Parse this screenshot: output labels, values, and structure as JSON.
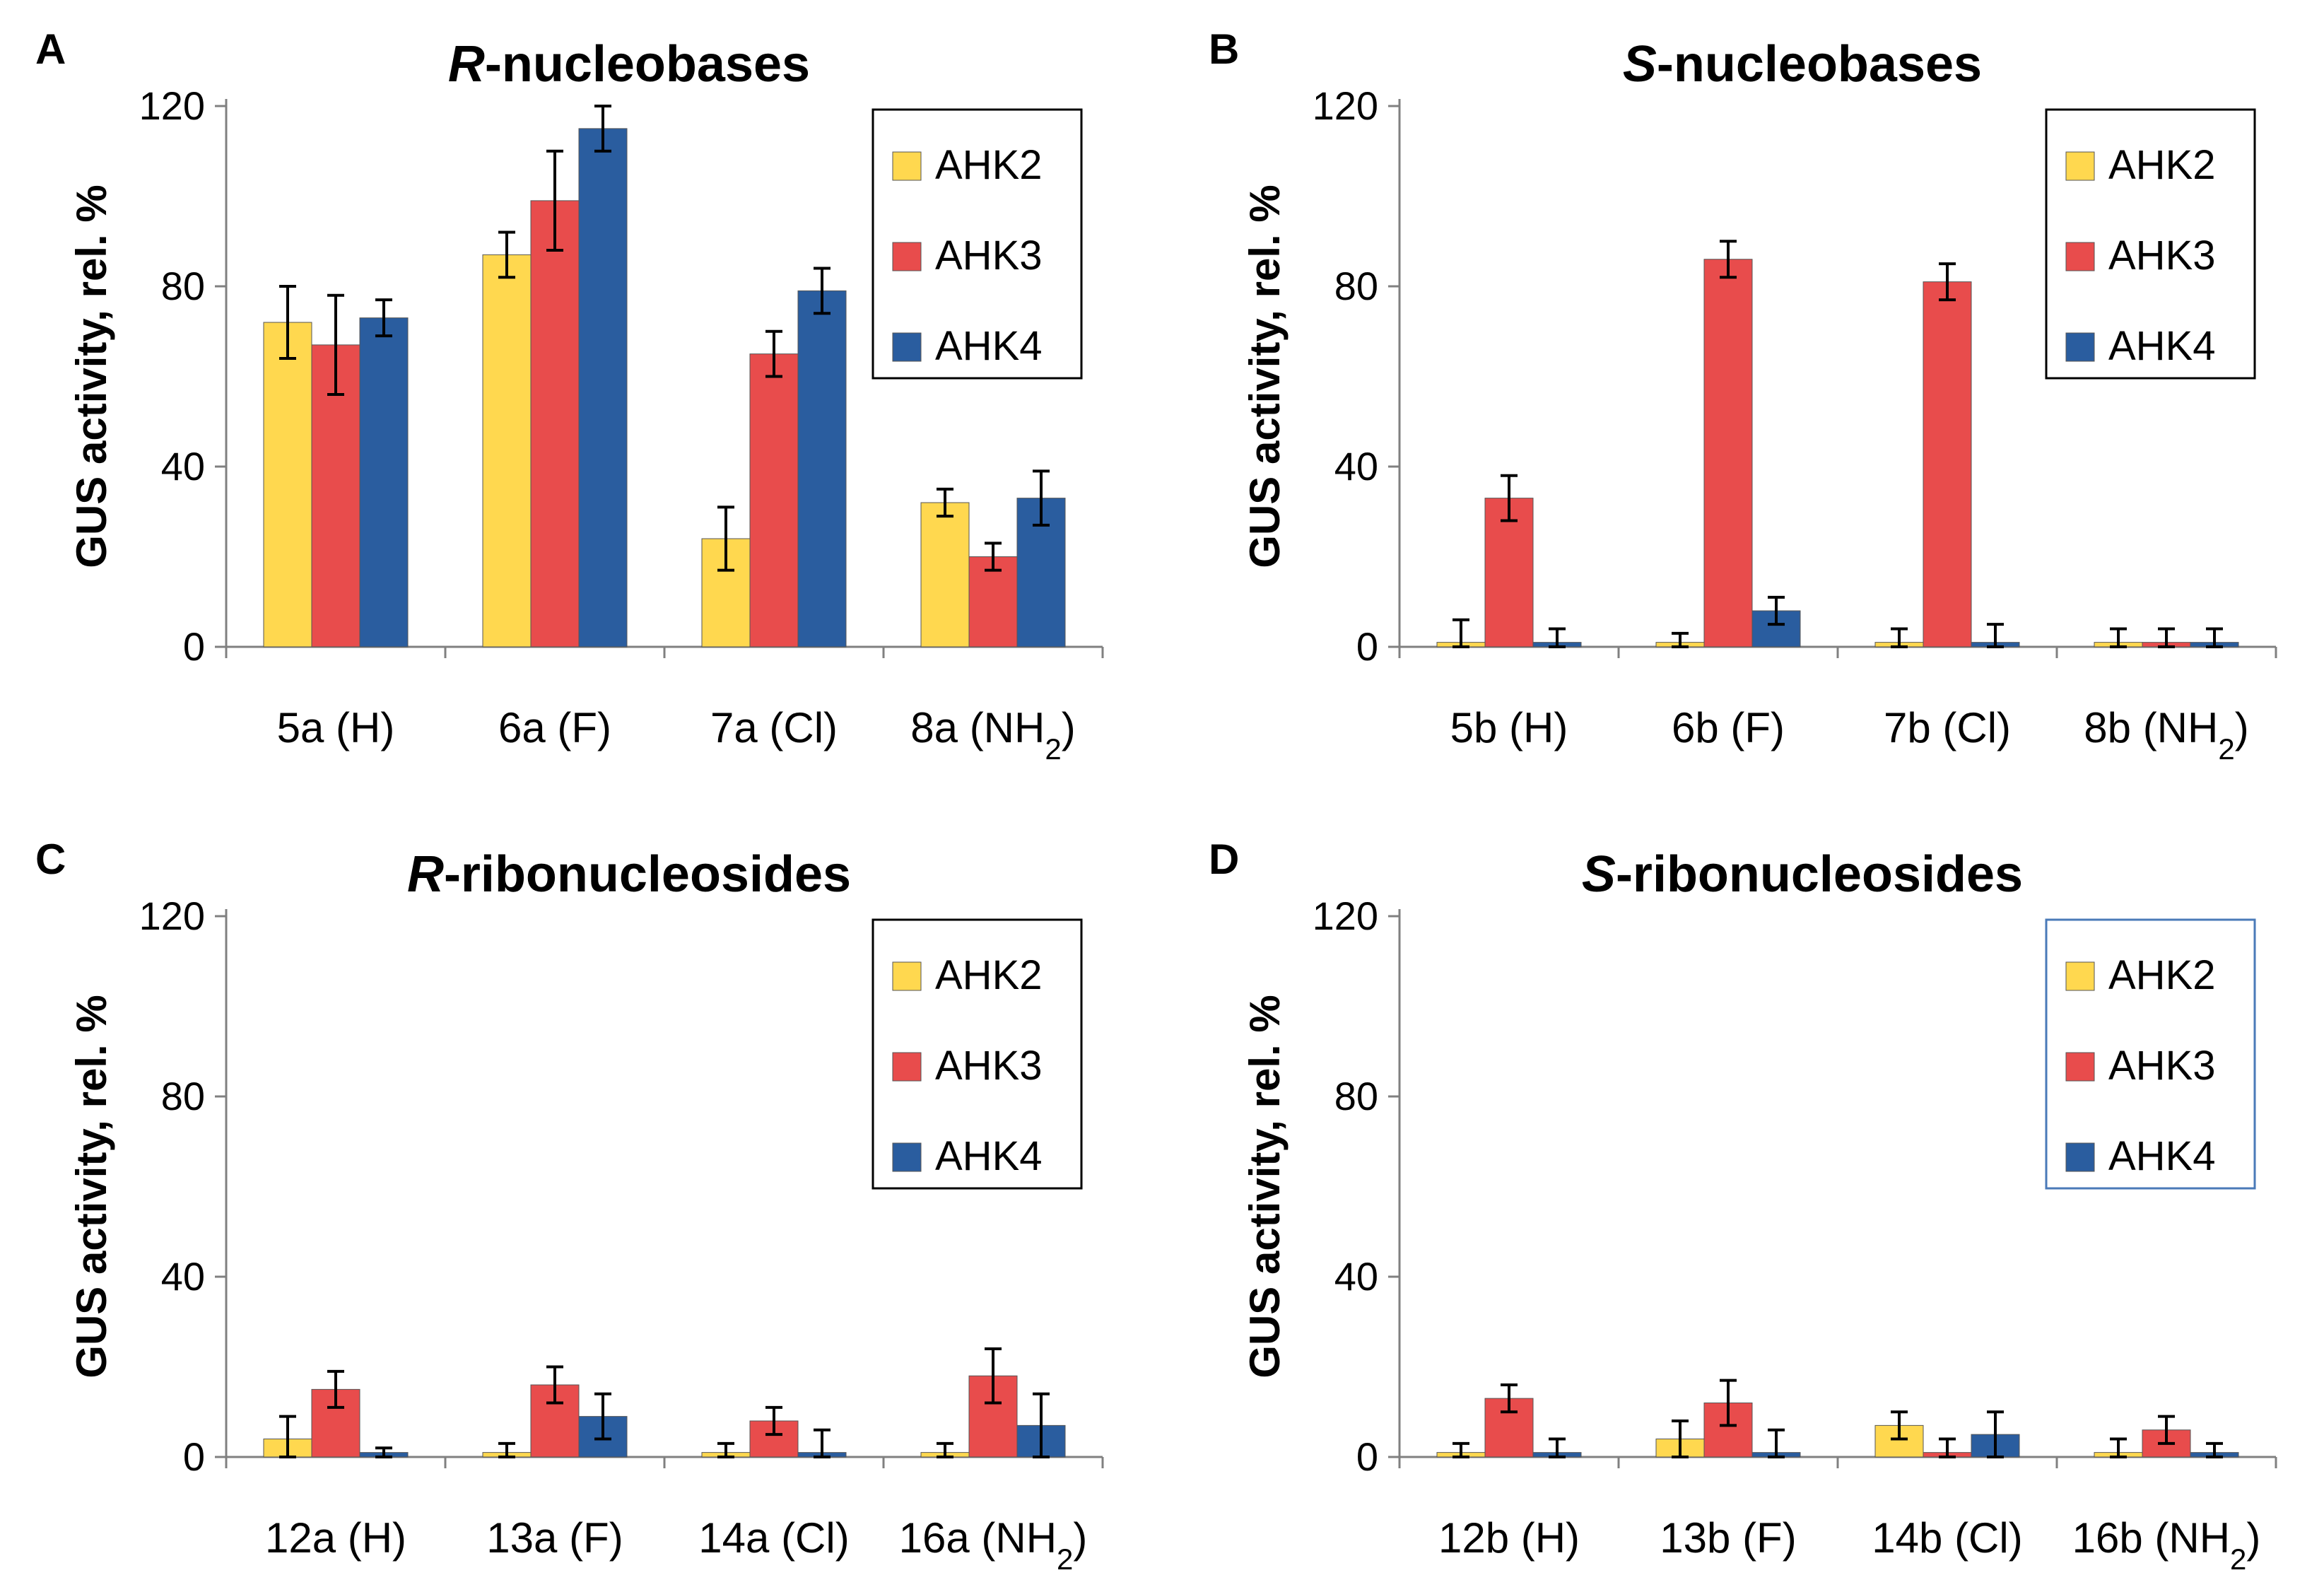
{
  "chart_data": [
    {
      "panel": "A",
      "type": "bar",
      "title_prefix": "R",
      "title_suffix": "-nucleobases",
      "ylabel": "GUS activity, rel. %",
      "ylim": [
        0,
        120
      ],
      "yticks": [
        "0",
        "40",
        "80",
        "120"
      ],
      "categories": [
        {
          "label": "5a (H)"
        },
        {
          "label": "6a (F)"
        },
        {
          "label": "7a (Cl)"
        },
        {
          "label": "8a (NH",
          "sub": "2",
          "tail": ")"
        }
      ],
      "series": [
        {
          "name": "AHK2",
          "color": "#FFD84F",
          "values": [
            72,
            87,
            24,
            32
          ],
          "errors": [
            8,
            5,
            7,
            3
          ]
        },
        {
          "name": "AHK3",
          "color": "#E84C4C",
          "values": [
            67,
            99,
            65,
            20
          ],
          "errors": [
            11,
            11,
            5,
            3
          ]
        },
        {
          "name": "AHK4",
          "color": "#2A5D9F",
          "values": [
            73,
            115,
            79,
            33
          ],
          "errors": [
            4,
            5,
            5,
            6
          ]
        }
      ],
      "legend": [
        "AHK2",
        "AHK3",
        "AHK4"
      ]
    },
    {
      "panel": "B",
      "type": "bar",
      "title_prefix": "S",
      "title_suffix": "-nucleobases",
      "ylabel": "GUS activity, rel. %",
      "ylim": [
        0,
        120
      ],
      "yticks": [
        "0",
        "40",
        "80",
        "120"
      ],
      "categories": [
        {
          "label": "5b (H)"
        },
        {
          "label": "6b (F)"
        },
        {
          "label": "7b (Cl)"
        },
        {
          "label": "8b (NH",
          "sub": "2",
          "tail": ")"
        }
      ],
      "series": [
        {
          "name": "AHK2",
          "color": "#FFD84F",
          "values": [
            1,
            1,
            1,
            1
          ],
          "errors": [
            5,
            2,
            3,
            3
          ]
        },
        {
          "name": "AHK3",
          "color": "#E84C4C",
          "values": [
            33,
            86,
            81,
            1
          ],
          "errors": [
            5,
            4,
            4,
            3
          ]
        },
        {
          "name": "AHK4",
          "color": "#2A5D9F",
          "values": [
            1,
            8,
            1,
            1
          ],
          "errors": [
            3,
            3,
            4,
            3
          ]
        }
      ],
      "legend": [
        "AHK2",
        "AHK3",
        "AHK4"
      ]
    },
    {
      "panel": "C",
      "type": "bar",
      "title_prefix": "R",
      "title_suffix": "-ribonucleosides",
      "ylabel": "GUS activity, rel. %",
      "ylim": [
        0,
        120
      ],
      "yticks": [
        "0",
        "40",
        "80",
        "120"
      ],
      "categories": [
        {
          "label": "12a (H)"
        },
        {
          "label": "13a (F)"
        },
        {
          "label": "14a (Cl)"
        },
        {
          "label": "16a (NH",
          "sub": "2",
          "tail": ")"
        }
      ],
      "series": [
        {
          "name": "AHK2",
          "color": "#FFD84F",
          "values": [
            4,
            1,
            1,
            1
          ],
          "errors": [
            5,
            2,
            2,
            2
          ]
        },
        {
          "name": "AHK3",
          "color": "#E84C4C",
          "values": [
            15,
            16,
            8,
            18
          ],
          "errors": [
            4,
            4,
            3,
            6
          ]
        },
        {
          "name": "AHK4",
          "color": "#2A5D9F",
          "values": [
            1,
            9,
            1,
            7
          ],
          "errors": [
            1,
            5,
            5,
            7
          ]
        }
      ],
      "legend": [
        "AHK2",
        "AHK3",
        "AHK4"
      ]
    },
    {
      "panel": "D",
      "type": "bar",
      "title_prefix": "S",
      "title_suffix": "-ribonucleosides",
      "ylabel": "GUS activity, rel. %",
      "ylim": [
        0,
        120
      ],
      "yticks": [
        "0",
        "40",
        "80",
        "120"
      ],
      "categories": [
        {
          "label": "12b (H)"
        },
        {
          "label": "13b (F)"
        },
        {
          "label": "14b (Cl)"
        },
        {
          "label": "16b (NH",
          "sub": "2",
          "tail": ")"
        }
      ],
      "series": [
        {
          "name": "AHK2",
          "color": "#FFD84F",
          "values": [
            1,
            4,
            7,
            1
          ],
          "errors": [
            2,
            4,
            3,
            3
          ]
        },
        {
          "name": "AHK3",
          "color": "#E84C4C",
          "values": [
            13,
            12,
            1,
            6
          ],
          "errors": [
            3,
            5,
            3,
            3
          ]
        },
        {
          "name": "AHK4",
          "color": "#2A5D9F",
          "values": [
            1,
            1,
            5,
            1
          ],
          "errors": [
            3,
            5,
            5,
            2
          ]
        }
      ],
      "legend": [
        "AHK2",
        "AHK3",
        "AHK4"
      ]
    }
  ]
}
